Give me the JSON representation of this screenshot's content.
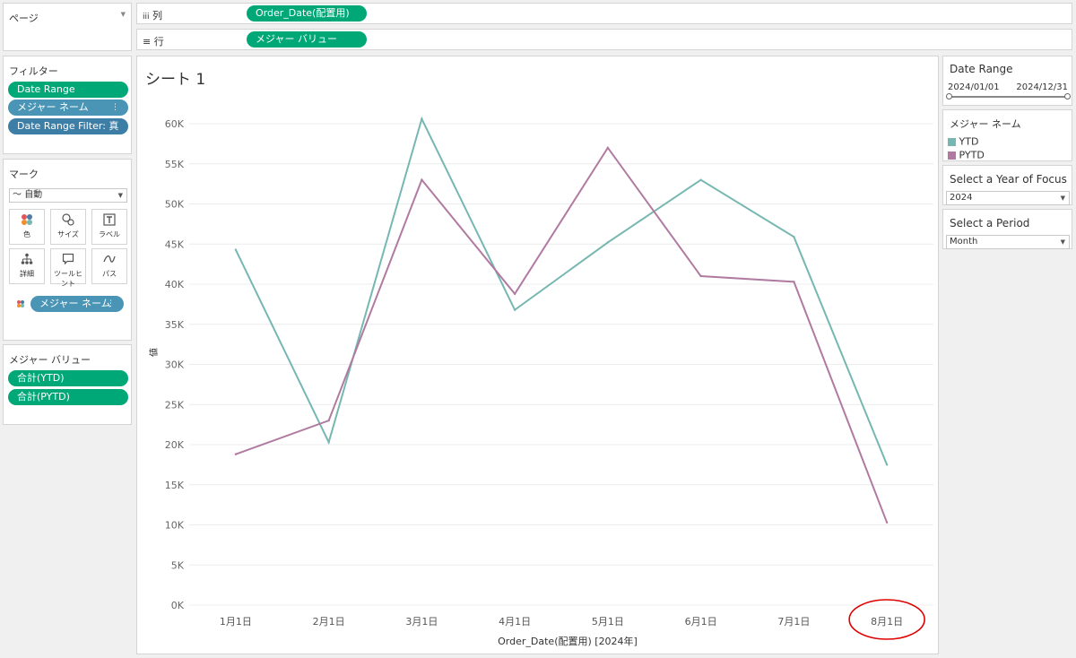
{
  "pages": {
    "title": "ページ"
  },
  "columns": {
    "label": "列",
    "pill": "Order_Date(配置用)"
  },
  "rows": {
    "label": "行",
    "pill": "メジャー バリュー"
  },
  "filters": {
    "title": "フィルター",
    "items": [
      {
        "label": "Date Range",
        "color": "#00a877"
      },
      {
        "label": "メジャー ネーム",
        "color": "#4a95b6"
      },
      {
        "label": "Date Range Filter: 真",
        "color": "#3d7ea6"
      }
    ]
  },
  "marks": {
    "title": "マーク",
    "type": "自動",
    "buttons": [
      {
        "label": "色",
        "icon": "color-icon"
      },
      {
        "label": "サイズ",
        "icon": "size-icon"
      },
      {
        "label": "ラベル",
        "icon": "label-icon"
      },
      {
        "label": "詳細",
        "icon": "detail-icon"
      },
      {
        "label": "ツールヒント",
        "icon": "tooltip-icon"
      },
      {
        "label": "パス",
        "icon": "path-icon"
      }
    ],
    "color_pill": "メジャー ネーム"
  },
  "measure_values": {
    "title": "メジャー バリュー",
    "items": [
      "合計(YTD)",
      "合計(PYTD)"
    ]
  },
  "sheet": {
    "title": "シート 1"
  },
  "chart_data": {
    "type": "line",
    "categories": [
      "1月1日",
      "2月1日",
      "3月1日",
      "4月1日",
      "5月1日",
      "6月1日",
      "7月1日",
      "8月1日"
    ],
    "series": [
      {
        "name": "YTD",
        "color": "#76b7b2",
        "values": [
          44300,
          20300,
          60600,
          36800,
          45200,
          53000,
          45900,
          17500
        ]
      },
      {
        "name": "PYTD",
        "color": "#b07aa1",
        "values": [
          18800,
          23000,
          53000,
          38800,
          57000,
          41000,
          40300,
          10300
        ]
      }
    ],
    "ylim": [
      0,
      60000
    ],
    "yticks": [
      "0K",
      "5K",
      "10K",
      "15K",
      "20K",
      "25K",
      "30K",
      "35K",
      "40K",
      "45K",
      "50K",
      "55K",
      "60K"
    ],
    "xlabel": "Order_Date(配置用) [2024年]",
    "ylabel": "値",
    "grid": true,
    "annotation": {
      "target": "8月1日",
      "shape": "ellipse",
      "color": "#e00000"
    }
  },
  "date_range": {
    "title": "Date Range",
    "start": "2024/01/01",
    "end": "2024/12/31"
  },
  "legend": {
    "title": "メジャー ネーム",
    "items": [
      {
        "label": "YTD",
        "color": "#76b7b2"
      },
      {
        "label": "PYTD",
        "color": "#b07aa1"
      }
    ]
  },
  "year_focus": {
    "title": "Select a Year of Focus",
    "value": "2024"
  },
  "period": {
    "title": "Select a Period",
    "value": "Month"
  }
}
